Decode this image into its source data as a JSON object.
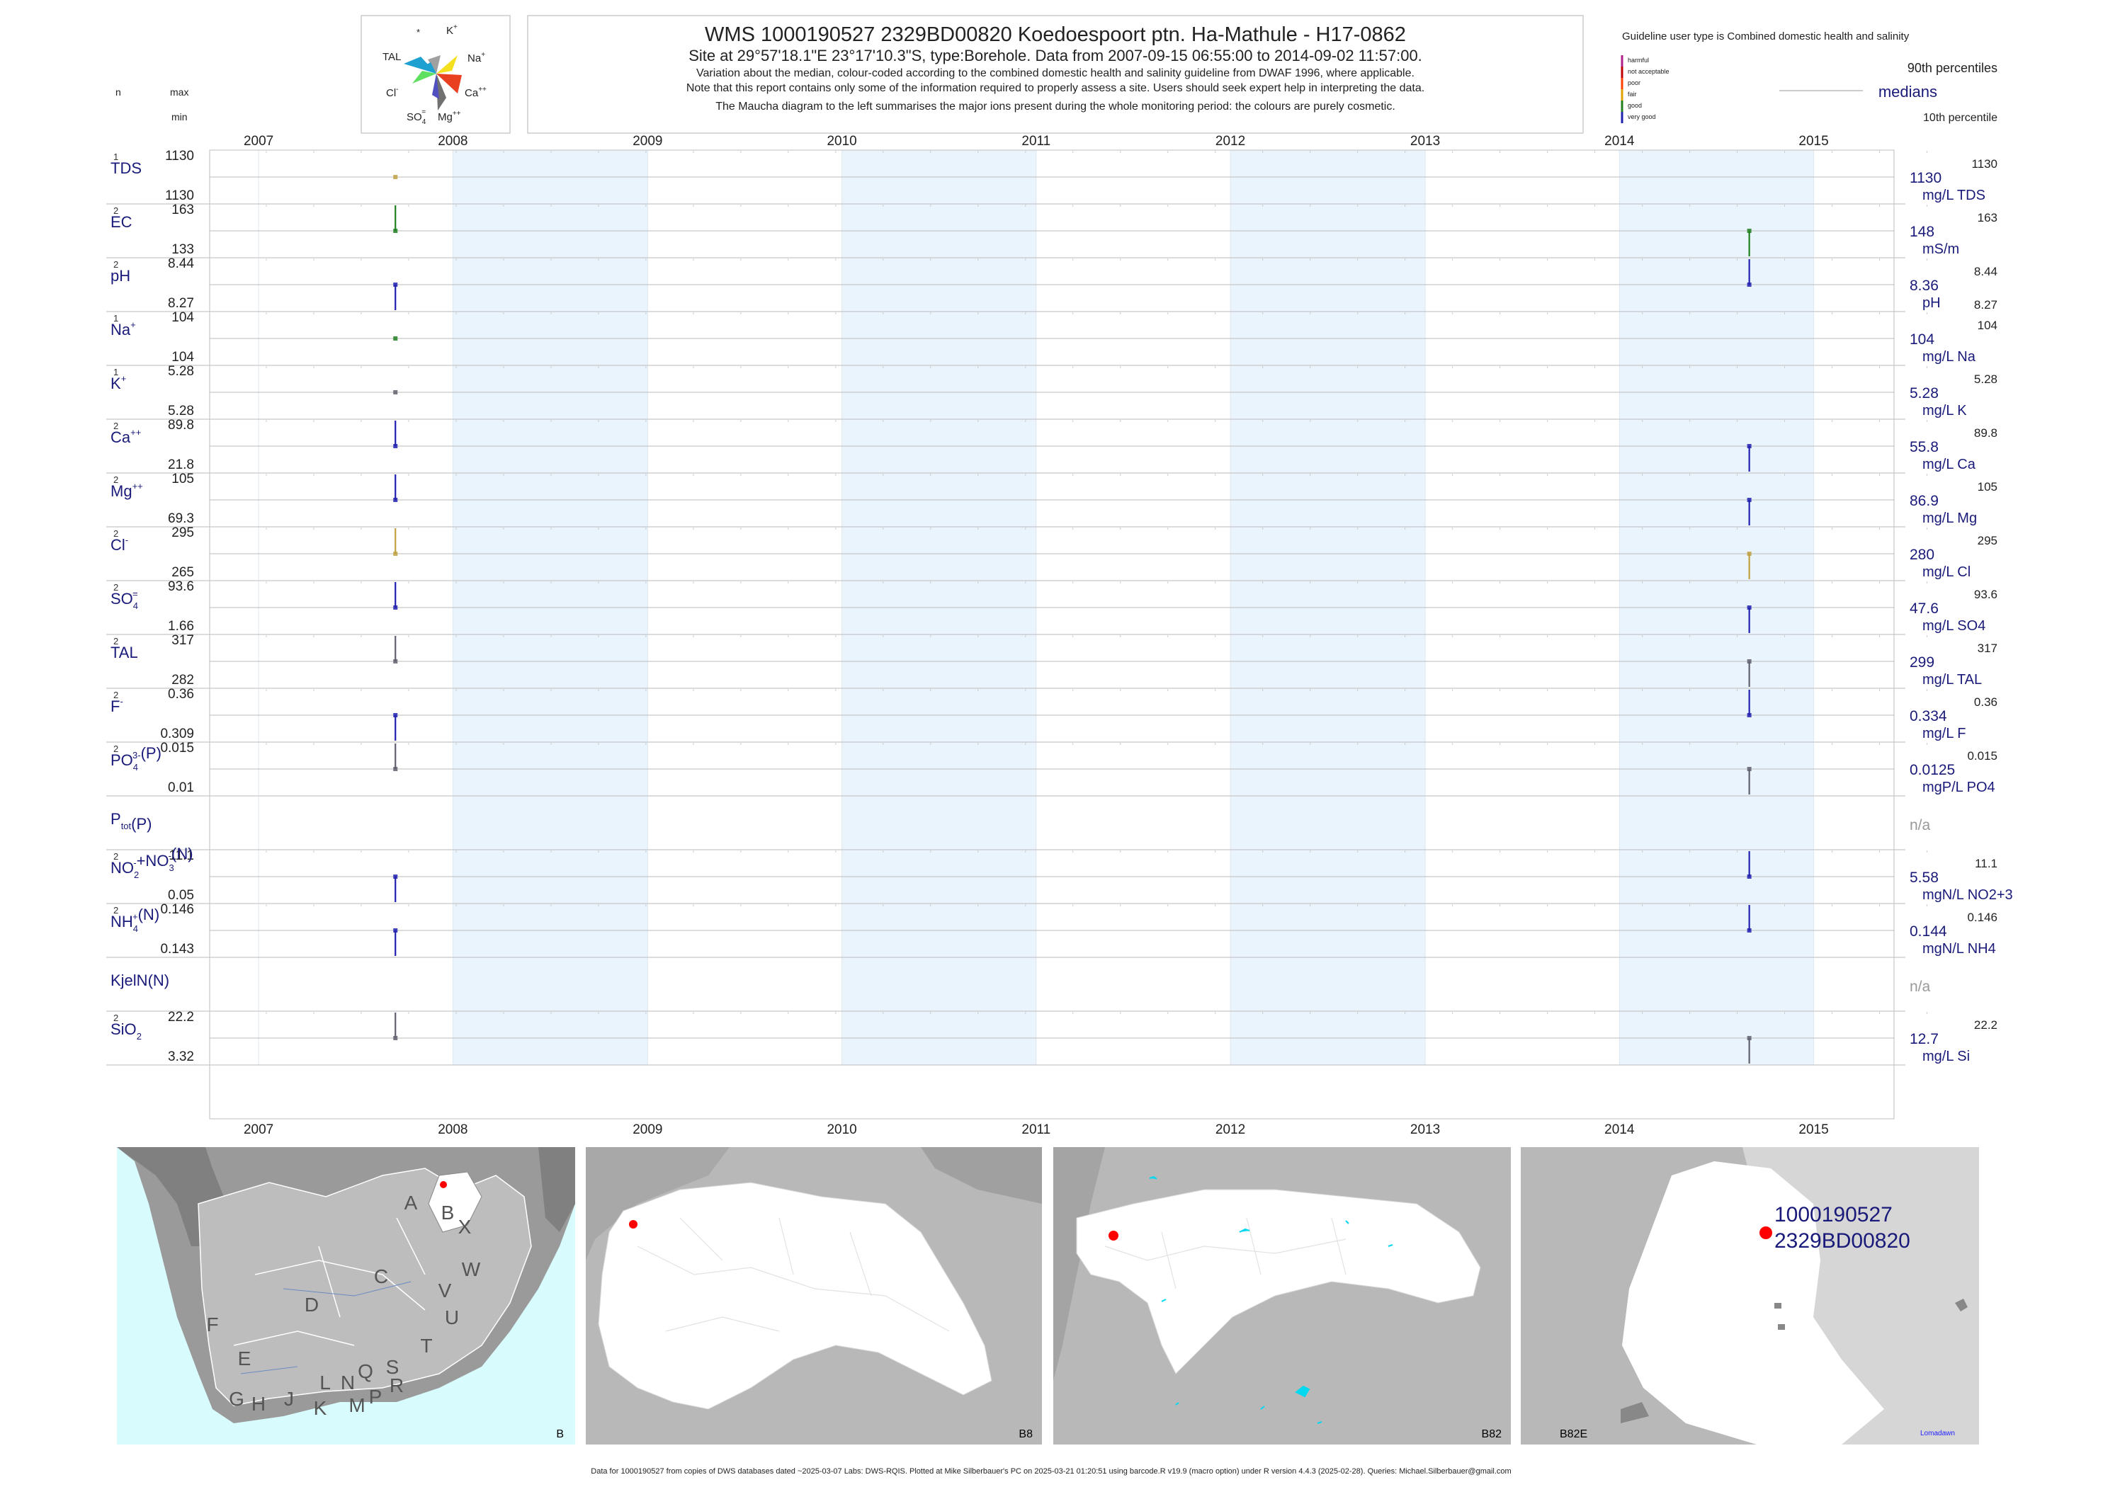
{
  "header": {
    "title": "WMS 1000190527 2329BD00820 Koedoespoort ptn. Ha-Mathule - H17-0862",
    "subtitle": "Site at 29°57'18.1\"E 23°17'10.3\"S, type:Borehole.  Data from 2007-09-15 06:55:00 to 2014-09-02 11:57:00.",
    "desc1": "Variation about the median,  colour-coded according to the combined domestic health and salinity guideline from DWAF 1996, where applicable.",
    "desc2": "Note that this report contains only some of the information required to properly assess a site. Users should seek expert help in interpreting the data.",
    "desc3": "The Maucha diagram to the left summarises the major ions present during the whole monitoring period: the colours are purely cosmetic."
  },
  "left_header": {
    "n": "n",
    "max": "max",
    "min": "min"
  },
  "maucha": {
    "labels": {
      "star": "*",
      "k": "K",
      "k_sup": "+",
      "tal": "TAL",
      "na": "Na",
      "na_sup": "+",
      "cl": "Cl",
      "cl_sup": "-",
      "ca": "Ca",
      "ca_sup": "++",
      "so4": "SO",
      "so4_sub": "4",
      "so4_sup": "=",
      "mg": "Mg",
      "mg_sup": "++"
    },
    "colors": {
      "tal": "#1ea0d0",
      "na": "#f5e020",
      "cl": "#60e060",
      "ca": "#e84020",
      "so4": "#5050c0",
      "mg": "#707070",
      "k": "#a0a0a0"
    }
  },
  "legend": {
    "guideline": "Guideline user type is Combined domestic health and salinity",
    "p90": "90th percentiles",
    "medians": "medians",
    "p10": "10th percentile",
    "categories": [
      {
        "label": "harmful",
        "color": "#b0208a"
      },
      {
        "label": "not acceptable",
        "color": "#c00000"
      },
      {
        "label": "poor",
        "color": "#ff4000"
      },
      {
        "label": "fair",
        "color": "#e0a000"
      },
      {
        "label": "good",
        "color": "#208020"
      },
      {
        "label": "very good",
        "color": "#2020b0"
      }
    ]
  },
  "chart_data": {
    "type": "line",
    "x_years": [
      "2007",
      "2008",
      "2009",
      "2010",
      "2011",
      "2012",
      "2013",
      "2014",
      "2015"
    ],
    "xlim": [
      "2006-10-01",
      "2015-06-01"
    ],
    "shaded_years": [
      "2008",
      "2010",
      "2012",
      "2014"
    ],
    "sample_dates": [
      "2007-09-15",
      "2014-09-02"
    ],
    "series": [
      {
        "key": "TDS",
        "label": "TDS",
        "n": "1",
        "max": "1130",
        "min": "1130",
        "median": "1130",
        "unit": "mg/L TDS",
        "p90": "1130",
        "p10": "",
        "points": [
          {
            "date": "2007-09-15",
            "value": 1130,
            "color": "#c0a040"
          }
        ]
      },
      {
        "key": "EC",
        "label": "EC",
        "n": "2",
        "max": "163",
        "min": "133",
        "median": "148",
        "unit": "mS/m",
        "p90": "163",
        "p10": "",
        "points": [
          {
            "date": "2007-09-15",
            "value": 163,
            "color": "#208020"
          },
          {
            "date": "2014-09-02",
            "value": 133,
            "color": "#208020"
          }
        ]
      },
      {
        "key": "pH",
        "label": "pH",
        "n": "2",
        "max": "8.44",
        "min": "8.27",
        "median": "8.36",
        "unit": "pH",
        "p90": "8.44",
        "p10": "8.27",
        "points": [
          {
            "date": "2007-09-15",
            "value": 8.27,
            "color": "#2020b0"
          },
          {
            "date": "2014-09-02",
            "value": 8.44,
            "color": "#2020b0"
          }
        ]
      },
      {
        "key": "Na",
        "label": "Na",
        "sup": "+",
        "n": "1",
        "max": "104",
        "min": "104",
        "median": "104",
        "unit": "mg/L Na",
        "p90": "104",
        "p10": "",
        "points": [
          {
            "date": "2007-09-15",
            "value": 104,
            "color": "#208020"
          }
        ]
      },
      {
        "key": "K",
        "label": "K",
        "sup": "+",
        "n": "1",
        "max": "5.28",
        "min": "5.28",
        "median": "5.28",
        "unit": "mg/L K",
        "p90": "5.28",
        "p10": "",
        "points": [
          {
            "date": "2007-09-15",
            "value": 5.28,
            "color": "#606070"
          }
        ]
      },
      {
        "key": "Ca",
        "label": "Ca",
        "sup": "++",
        "n": "2",
        "max": "89.8",
        "min": "21.8",
        "median": "55.8",
        "unit": "mg/L Ca",
        "p90": "89.8",
        "p10": "",
        "points": [
          {
            "date": "2007-09-15",
            "value": 89.8,
            "color": "#2020b0"
          },
          {
            "date": "2014-09-02",
            "value": 21.8,
            "color": "#2020b0"
          }
        ]
      },
      {
        "key": "Mg",
        "label": "Mg",
        "sup": "++",
        "n": "2",
        "max": "105",
        "min": "69.3",
        "median": "86.9",
        "unit": "mg/L Mg",
        "p90": "105",
        "p10": "",
        "points": [
          {
            "date": "2007-09-15",
            "value": 105,
            "color": "#2020b0"
          },
          {
            "date": "2014-09-02",
            "value": 69.3,
            "color": "#2020b0"
          }
        ]
      },
      {
        "key": "Cl",
        "label": "Cl",
        "sup": "-",
        "n": "2",
        "max": "295",
        "min": "265",
        "median": "280",
        "unit": "mg/L Cl",
        "p90": "295",
        "p10": "",
        "points": [
          {
            "date": "2007-09-15",
            "value": 295,
            "color": "#c0a040"
          },
          {
            "date": "2014-09-02",
            "value": 265,
            "color": "#c0a040"
          }
        ]
      },
      {
        "key": "SO4",
        "label": "SO",
        "sub": "4",
        "sup": "=",
        "n": "2",
        "max": "93.6",
        "min": "1.66",
        "median": "47.6",
        "unit": "mg/L SO4",
        "p90": "93.6",
        "p10": "",
        "points": [
          {
            "date": "2007-09-15",
            "value": 93.6,
            "color": "#2020b0"
          },
          {
            "date": "2014-09-02",
            "value": 1.66,
            "color": "#2020b0"
          }
        ]
      },
      {
        "key": "TAL",
        "label": "TAL",
        "n": "2",
        "max": "317",
        "min": "282",
        "median": "299",
        "unit": "mg/L TAL",
        "p90": "317",
        "p10": "",
        "points": [
          {
            "date": "2007-09-15",
            "value": 317,
            "color": "#606070"
          },
          {
            "date": "2014-09-02",
            "value": 282,
            "color": "#606070"
          }
        ]
      },
      {
        "key": "F",
        "label": "F",
        "sup": "-",
        "n": "2",
        "max": "0.36",
        "min": "0.309",
        "median": "0.334",
        "unit": "mg/L F",
        "p90": "0.36",
        "p10": "",
        "points": [
          {
            "date": "2007-09-15",
            "value": 0.309,
            "color": "#2020b0"
          },
          {
            "date": "2014-09-02",
            "value": 0.36,
            "color": "#2020b0"
          }
        ]
      },
      {
        "key": "PO4",
        "label": "PO",
        "sub": "4",
        "sup": "3-",
        "suffix": "(P)",
        "n": "2",
        "max": "0.015",
        "min": "0.01",
        "median": "0.0125",
        "unit": "mgP/L PO4",
        "p90": "0.015",
        "p10": "",
        "points": [
          {
            "date": "2007-09-15",
            "value": 0.015,
            "color": "#606070"
          },
          {
            "date": "2014-09-02",
            "value": 0.01,
            "color": "#606070"
          }
        ]
      },
      {
        "key": "Ptot",
        "label": "P",
        "sub": "tot",
        "suffix": "(P)",
        "n": "",
        "max": "",
        "min": "",
        "median": "n/a",
        "unit": "",
        "p90": "",
        "p10": "",
        "points": []
      },
      {
        "key": "NO23",
        "label": "NO",
        "sub": "2",
        "sup": "-",
        "suffix2": "+NO",
        "sub2": "3",
        "sup2": "-",
        "suffix": "(N)",
        "n": "2",
        "max": "11.1",
        "min": "0.05",
        "median": "5.58",
        "unit": "mgN/L NO2+3",
        "p90": "11.1",
        "p10": "",
        "points": [
          {
            "date": "2007-09-15",
            "value": 0.05,
            "color": "#2020b0"
          },
          {
            "date": "2014-09-02",
            "value": 11.1,
            "color": "#2020b0"
          }
        ]
      },
      {
        "key": "NH4",
        "label": "NH",
        "sub": "4",
        "sup": "+",
        "suffix": "(N)",
        "n": "2",
        "max": "0.146",
        "min": "0.143",
        "median": "0.144",
        "unit": "mgN/L NH4",
        "p90": "0.146",
        "p10": "",
        "points": [
          {
            "date": "2007-09-15",
            "value": 0.143,
            "color": "#2020b0"
          },
          {
            "date": "2014-09-02",
            "value": 0.146,
            "color": "#2020b0"
          }
        ]
      },
      {
        "key": "KjelN",
        "label": "KjelN(N)",
        "n": "",
        "max": "",
        "min": "",
        "median": "n/a",
        "unit": "",
        "p90": "",
        "p10": "",
        "points": []
      },
      {
        "key": "SiO2",
        "label": "SiO",
        "sub": "2",
        "n": "2",
        "max": "22.2",
        "min": "3.32",
        "median": "12.7",
        "unit": "mg/L Si",
        "p90": "22.2",
        "p10": "",
        "points": [
          {
            "date": "2007-09-15",
            "value": 22.2,
            "color": "#606070"
          },
          {
            "date": "2014-09-02",
            "value": 3.32,
            "color": "#606070"
          }
        ]
      }
    ]
  },
  "maps": {
    "map1": {
      "corner": "B",
      "regions": [
        "A",
        "B",
        "X",
        "C",
        "W",
        "D",
        "V",
        "U",
        "F",
        "T",
        "E",
        "G",
        "H",
        "J",
        "K",
        "L",
        "N",
        "M",
        "Q",
        "P",
        "S",
        "R"
      ]
    },
    "map2": {
      "corner": "B8"
    },
    "map3": {
      "corner": "B82"
    },
    "map4": {
      "corner": "B82E",
      "label1": "1000190527",
      "label2": "2329BD00820",
      "town": "Lomadawn"
    }
  },
  "footer": "Data for 1000190527 from copies of DWS databases dated ~2025-03-07 Labs: DWS-RQIS. Plotted at Mike Silberbauer's PC on 2025-03-21 01:20:51 using barcode.R v19.9 (macro option) under R version 4.4.3 (2025-02-28). Queries: Michael.Silberbauer@gmail.com"
}
